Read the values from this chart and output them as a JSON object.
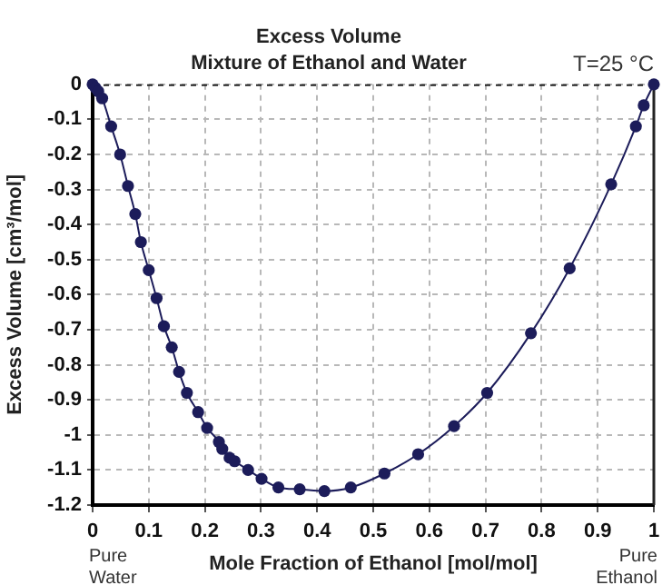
{
  "chart_data": {
    "type": "line",
    "title": "Excess Volume",
    "subtitle": "Mixture of Ethanol and Water",
    "xlabel": "Mole Fraction of Ethanol [mol/mol]",
    "ylabel": "Excess Volume [cm³/mol]",
    "annotations": [
      "T=25 °C",
      "Pure Water",
      "Pure Ethanol"
    ],
    "x": [
      0,
      0.005,
      0.01,
      0.017,
      0.033,
      0.049,
      0.063,
      0.076,
      0.086,
      0.1,
      0.114,
      0.127,
      0.141,
      0.154,
      0.168,
      0.188,
      0.204,
      0.225,
      0.231,
      0.244,
      0.253,
      0.277,
      0.301,
      0.331,
      0.369,
      0.413,
      0.46,
      0.52,
      0.58,
      0.644,
      0.703,
      0.781,
      0.85,
      0.924,
      0.968,
      0.982,
      1
    ],
    "series": [
      {
        "color": "#1c1c5a",
        "values": [
          0,
          -0.01,
          -0.02,
          -0.04,
          -0.12,
          -0.2,
          -0.29,
          -0.37,
          -0.45,
          -0.53,
          -0.61,
          -0.69,
          -0.75,
          -0.82,
          -0.88,
          -0.935,
          -0.98,
          -1.02,
          -1.04,
          -1.065,
          -1.075,
          -1.1,
          -1.125,
          -1.15,
          -1.155,
          -1.16,
          -1.15,
          -1.11,
          -1.055,
          -0.975,
          -0.88,
          -0.71,
          -0.525,
          -0.285,
          -0.12,
          -0.06,
          0
        ]
      }
    ],
    "xlim": [
      0,
      1
    ],
    "ylim": [
      -1.2,
      0
    ],
    "xticks": [
      0,
      0.1,
      0.2,
      0.3,
      0.4,
      0.5,
      0.6,
      0.7,
      0.8,
      0.9,
      1
    ],
    "yticks": [
      0,
      -0.1,
      -0.2,
      -0.3,
      -0.4,
      -0.5,
      -0.6,
      -0.7,
      -0.8,
      -0.9,
      -1,
      -1.1,
      -1.2
    ],
    "grid": true,
    "marker": "circle",
    "line_style": "solid"
  }
}
